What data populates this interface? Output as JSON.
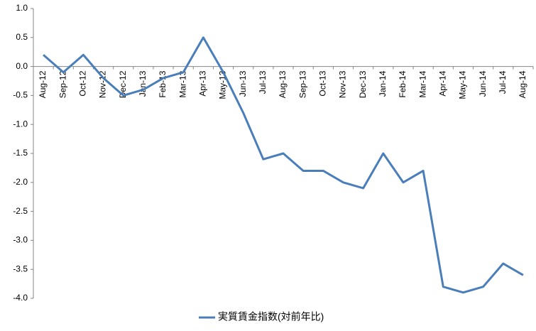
{
  "chart_data": {
    "type": "line",
    "categories": [
      "Aug-12",
      "Sep-12",
      "Oct-12",
      "Nov-12",
      "Dec-12",
      "Jan-13",
      "Feb-13",
      "Mar-13",
      "Apr-13",
      "May-13",
      "Jun-13",
      "Jul-13",
      "Aug-13",
      "Sep-13",
      "Oct-13",
      "Nov-13",
      "Dec-13",
      "Jan-14",
      "Feb-14",
      "Mar-14",
      "Apr-14",
      "May-14",
      "Jun-14",
      "Jul-14",
      "Aug-14"
    ],
    "series": [
      {
        "name": "実質賃金指数(対前年比)",
        "color": "#4a7ebb",
        "values": [
          0.2,
          -0.1,
          0.2,
          -0.2,
          -0.5,
          -0.4,
          -0.2,
          -0.1,
          0.5,
          -0.1,
          -0.8,
          -1.6,
          -1.5,
          -1.8,
          -1.8,
          -2.0,
          -2.1,
          -1.5,
          -2.0,
          -1.8,
          -3.8,
          -3.9,
          -3.8,
          -3.4,
          -3.6
        ]
      }
    ],
    "ylim": [
      -4,
      1
    ],
    "yticks": [
      {
        "value": 1,
        "label": "1.0"
      },
      0.5,
      {
        "value": 0,
        "label": "0.0"
      },
      -0.5,
      {
        "value": -1,
        "label": "-1.0"
      },
      -1.5,
      {
        "value": -2,
        "label": "-2.0"
      },
      -2.5,
      {
        "value": -3,
        "label": "-3.0"
      },
      -3.5,
      {
        "value": -4,
        "label": "-4.0"
      }
    ],
    "grid": false,
    "legend": "bottom"
  }
}
